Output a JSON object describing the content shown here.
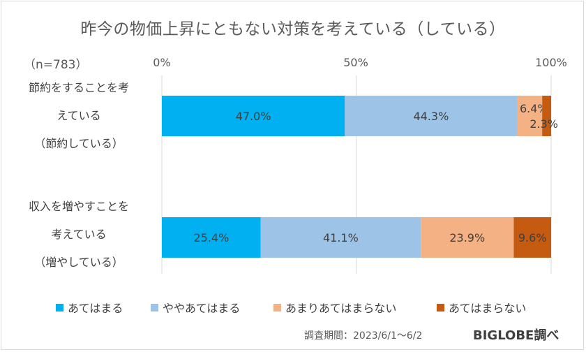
{
  "title": "昨今の物価上昇にともない対策を考えている（している）",
  "sample_size": "（n=783）",
  "footer": {
    "period": "調査期間：2023/6/1〜6/2",
    "brand": "BIGLOBE調べ"
  },
  "chart_data": {
    "type": "bar",
    "orientation": "horizontal",
    "stacked": "percent",
    "categories": [
      [
        "節約をすることを考",
        "えている",
        "（節約している）"
      ],
      [
        "収入を増やすことを",
        "考えている",
        "（増やしている）"
      ]
    ],
    "series": [
      {
        "name": "あてはまる",
        "values": [
          47.0,
          25.4
        ],
        "labels": [
          "47.0%",
          "25.4%"
        ],
        "color": "#00b0f0"
      },
      {
        "name": "ややあてはまる",
        "values": [
          44.3,
          41.1
        ],
        "labels": [
          "44.3%",
          "41.1%"
        ],
        "color": "#9dc3e6"
      },
      {
        "name": "あまりあてはまらない",
        "values": [
          6.4,
          23.9
        ],
        "labels": [
          "6.4%",
          "23.9%"
        ],
        "color": "#f4b183"
      },
      {
        "name": "あてはまらない",
        "values": [
          2.3,
          9.6
        ],
        "labels": [
          "2.3%",
          "9.6%"
        ],
        "color": "#c55a11"
      }
    ],
    "xticks": [
      "0%",
      "50%",
      "100%"
    ],
    "xlim": [
      0,
      100
    ],
    "grid": true,
    "legend": "bottom"
  }
}
